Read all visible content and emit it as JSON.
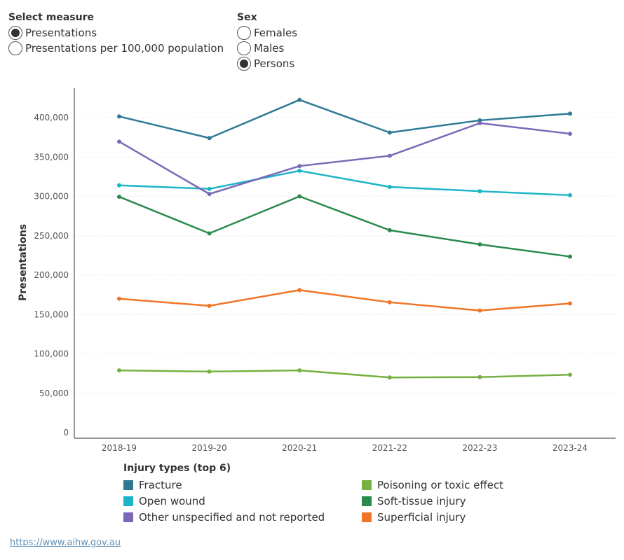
{
  "measure_control": {
    "title": "Select measure",
    "options": [
      {
        "label": "Presentations",
        "selected": true
      },
      {
        "label": "Presentations per 100,000 population",
        "selected": false
      }
    ]
  },
  "sex_control": {
    "title": "Sex",
    "options": [
      {
        "label": "Females",
        "selected": false
      },
      {
        "label": "Males",
        "selected": false
      },
      {
        "label": "Persons",
        "selected": true
      }
    ]
  },
  "legend": {
    "title": "Injury types (top 6)"
  },
  "source": {
    "link_text": "https://www.aihw.gov.au"
  },
  "chart_data": {
    "type": "line",
    "title": "",
    "xlabel": "",
    "ylabel": "Presentations",
    "categories": [
      "2018-19",
      "2019-20",
      "2020-21",
      "2021-22",
      "2022-23",
      "2023-24"
    ],
    "ylim": [
      0,
      440000
    ],
    "yticks": [
      0,
      50000,
      100000,
      150000,
      200000,
      250000,
      300000,
      350000,
      400000
    ],
    "ytick_labels": [
      "0",
      "50,000",
      "100,000",
      "150,000",
      "200,000",
      "250,000",
      "300,000",
      "350,000",
      "400,000"
    ],
    "grid": true,
    "legend_position": "bottom",
    "series": [
      {
        "name": "Fracture",
        "color": "#2e7a94",
        "values": [
          401500,
          374000,
          422500,
          381000,
          396500,
          405000
        ]
      },
      {
        "name": "Open wound",
        "color": "#1bb5c8",
        "values": [
          314000,
          309500,
          332500,
          312000,
          306500,
          301500
        ]
      },
      {
        "name": "Other unspecified and not reported",
        "color": "#7b68b8",
        "values": [
          369500,
          303000,
          338500,
          351500,
          393000,
          379500
        ]
      },
      {
        "name": "Poisoning or toxic effect",
        "color": "#76b041",
        "values": [
          79000,
          77500,
          79000,
          70000,
          70500,
          73500
        ]
      },
      {
        "name": "Soft-tissue injury",
        "color": "#2a8a4e",
        "values": [
          299500,
          253000,
          300000,
          257000,
          239000,
          223500
        ]
      },
      {
        "name": "Superficial injury",
        "color": "#f07527",
        "values": [
          170000,
          161000,
          181000,
          165500,
          155000,
          164000
        ]
      }
    ]
  }
}
